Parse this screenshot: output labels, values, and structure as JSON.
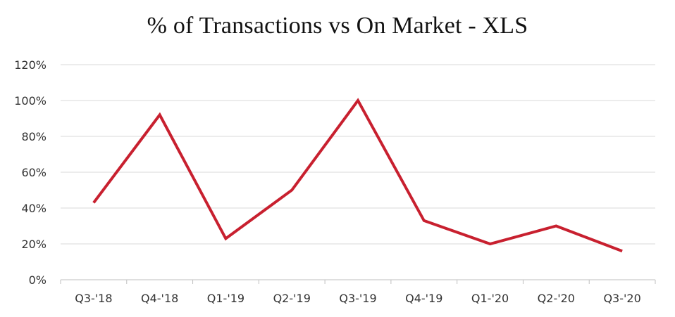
{
  "chart_data": {
    "type": "line",
    "title": "% of Transactions vs On Market - XLS",
    "xlabel": "",
    "ylabel": "",
    "categories": [
      "Q3-'18",
      "Q4-'18",
      "Q1-'19",
      "Q2-'19",
      "Q3-'19",
      "Q4-'19",
      "Q1-'20",
      "Q2-'20",
      "Q3-'20"
    ],
    "series": [
      {
        "values": [
          43,
          92,
          23,
          50,
          100,
          33,
          20,
          30,
          16
        ],
        "color": "#c8202f"
      }
    ],
    "ylim": [
      0,
      120
    ],
    "yticks": [
      "0%",
      "20%",
      "40%",
      "60%",
      "80%",
      "100%",
      "120%"
    ],
    "grid": "horizontal",
    "legend": "none",
    "colors": {
      "gridline": "#d9d9d9",
      "axis": "#bfbfbf"
    }
  }
}
